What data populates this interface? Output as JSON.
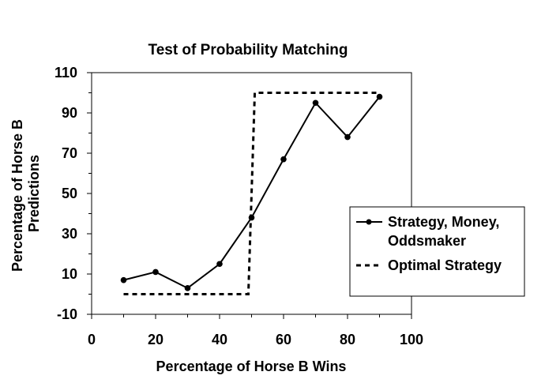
{
  "chart_data": {
    "type": "line",
    "title": "Test of Probability Matching",
    "xlabel": "Percentage of Horse B Wins",
    "ylabel_lines": [
      "Percentage of Horse B",
      "Predictions"
    ],
    "xlim": [
      0,
      100
    ],
    "ylim": [
      -10,
      110
    ],
    "x_ticks": [
      0,
      20,
      40,
      60,
      80,
      100
    ],
    "y_ticks": [
      -10,
      10,
      30,
      50,
      70,
      90,
      110
    ],
    "grid": false,
    "legend_position": "right",
    "series": [
      {
        "name_lines": [
          "Strategy, Money,",
          "Oddsmaker"
        ],
        "style": "solid-markers",
        "color": "#000000",
        "x": [
          10,
          20,
          30,
          40,
          50,
          60,
          70,
          80,
          90
        ],
        "y": [
          7,
          11,
          3,
          15,
          38,
          67,
          95,
          78,
          98
        ]
      },
      {
        "name_lines": [
          "Optimal Strategy"
        ],
        "style": "dashed",
        "color": "#000000",
        "x": [
          10,
          49,
          51,
          90
        ],
        "y": [
          0,
          0,
          100,
          100
        ]
      }
    ]
  }
}
